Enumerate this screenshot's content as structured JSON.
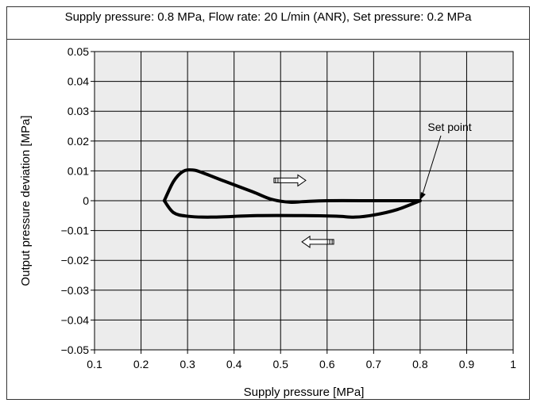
{
  "chart_data": {
    "type": "line",
    "title": "Supply pressure: 0.8 MPa, Flow rate: 20 L/min (ANR), Set pressure: 0.2 MPa",
    "xlabel": "Supply pressure [MPa]",
    "ylabel": "Output pressure deviation [MPa]",
    "xlim": [
      0.1,
      1.0
    ],
    "ylim": [
      -0.05,
      0.05
    ],
    "x_ticks": [
      0.1,
      0.2,
      0.3,
      0.4,
      0.5,
      0.6,
      0.7,
      0.8,
      0.9,
      1.0
    ],
    "x_tick_labels": [
      "0.1",
      "0.2",
      "0.3",
      "0.4",
      "0.5",
      "0.6",
      "0.7",
      "0.8",
      "0.9",
      "1"
    ],
    "y_ticks": [
      0.05,
      0.04,
      0.03,
      0.02,
      0.01,
      0,
      -0.01,
      -0.02,
      -0.03,
      -0.04,
      -0.05
    ],
    "y_tick_labels": [
      "0.05",
      "0.04",
      "0.03",
      "0.02",
      "0.01",
      "0",
      "−0.01",
      "−0.02",
      "−0.03",
      "−0.04",
      "−0.05"
    ],
    "grid": true,
    "series": [
      {
        "x": [
          0.8,
          0.75,
          0.7,
          0.6,
          0.55,
          0.52,
          0.48,
          0.44,
          0.38,
          0.33,
          0.31,
          0.29,
          0.27,
          0.25
        ],
        "y": [
          0.0,
          0.0,
          0.0,
          0.0,
          -0.0003,
          -0.0005,
          0.0005,
          0.003,
          0.0065,
          0.0095,
          0.0103,
          0.0098,
          0.0065,
          0.0
        ]
      },
      {
        "x": [
          0.25,
          0.27,
          0.3,
          0.35,
          0.45,
          0.55,
          0.62,
          0.66,
          0.7,
          0.75,
          0.8
        ],
        "y": [
          0.0,
          -0.004,
          -0.0052,
          -0.0055,
          -0.005,
          -0.005,
          -0.0052,
          -0.0055,
          -0.0048,
          -0.003,
          0.0
        ]
      }
    ],
    "annotations": [
      {
        "text": "Set point",
        "x": 0.8,
        "y": 0.0
      }
    ],
    "arrows": [
      {
        "direction": "right",
        "x": 0.52,
        "y": 0.0068
      },
      {
        "direction": "left",
        "x": 0.58,
        "y": -0.0138
      }
    ],
    "colors": {
      "line": "#000000",
      "plot_bg": "#ececec",
      "grid": "#000000"
    }
  }
}
